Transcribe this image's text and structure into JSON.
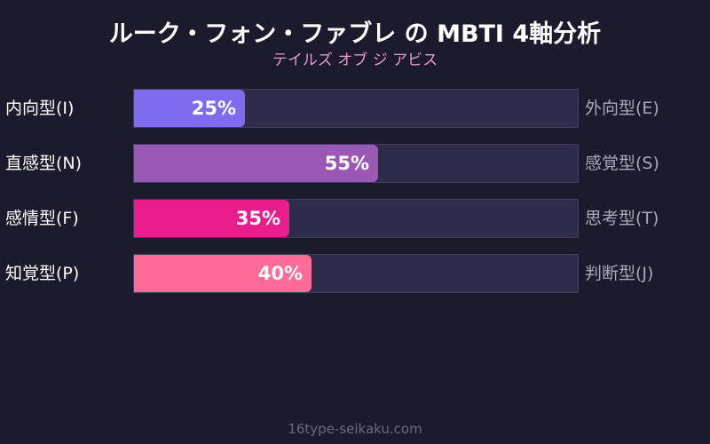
{
  "title": "ルーク・フォン・ファブレ の MBTI 4軸分析",
  "subtitle": "テイルズ オブ ジ アビス",
  "footer": "16type-seikaku.com",
  "chart_data": {
    "type": "bar",
    "orientation": "horizontal",
    "xlim": [
      0,
      100
    ],
    "grid": false,
    "rows": [
      {
        "left_label": "内向型(I)",
        "right_label": "外向型(E)",
        "value": 25,
        "value_label": "25%",
        "color": "#7e6bee"
      },
      {
        "left_label": "直感型(N)",
        "right_label": "感覚型(S)",
        "value": 55,
        "value_label": "55%",
        "color": "#9b59b6"
      },
      {
        "left_label": "感情型(F)",
        "right_label": "思考型(T)",
        "value": 35,
        "value_label": "35%",
        "color": "#e91e8c"
      },
      {
        "left_label": "知覚型(P)",
        "right_label": "判断型(J)",
        "value": 40,
        "value_label": "40%",
        "color": "#fd6b96"
      }
    ]
  }
}
